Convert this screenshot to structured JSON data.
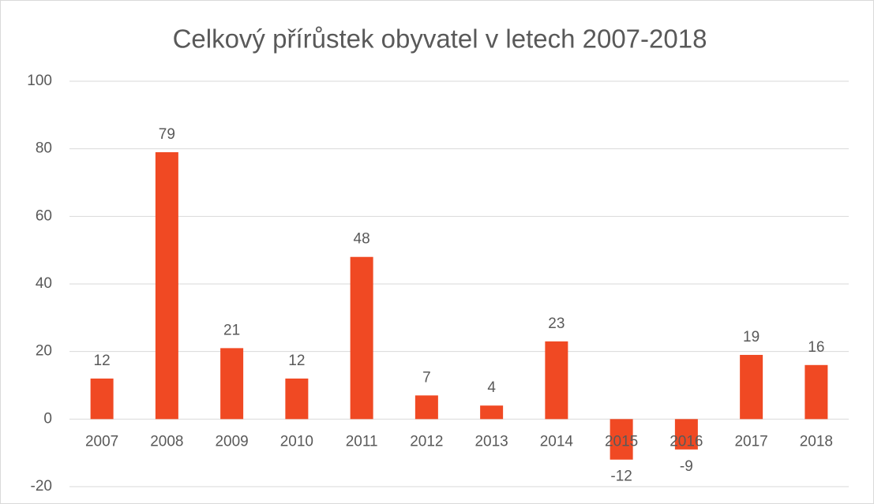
{
  "chart_data": {
    "type": "bar",
    "title": "Celkový přírůstek obyvatel v letech 2007-2018",
    "categories": [
      "2007",
      "2008",
      "2009",
      "2010",
      "2011",
      "2012",
      "2013",
      "2014",
      "2015",
      "2016",
      "2017",
      "2018"
    ],
    "values": [
      12,
      79,
      21,
      12,
      48,
      7,
      4,
      23,
      -12,
      -9,
      19,
      16
    ],
    "color": "#f04923",
    "ylim": [
      -20,
      100
    ],
    "yticks": [
      -20,
      0,
      20,
      40,
      60,
      80,
      100
    ],
    "grid": true
  }
}
